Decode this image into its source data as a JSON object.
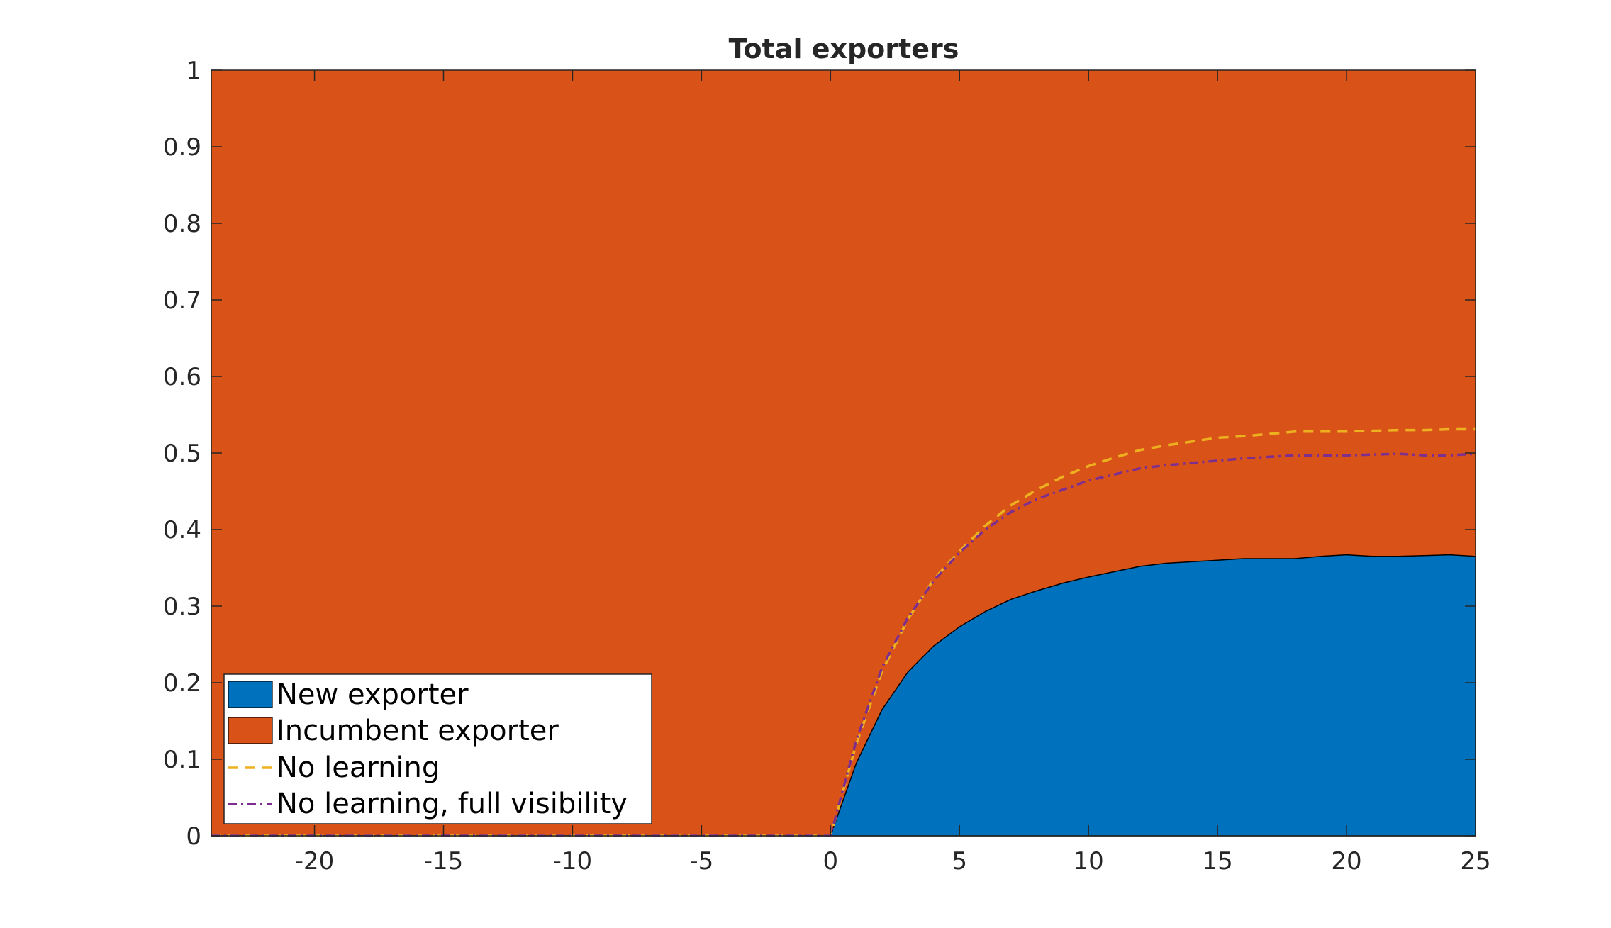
{
  "chart_data": {
    "type": "area",
    "title": "Total exporters",
    "xlabel": "",
    "ylabel": "",
    "xlim": [
      -24,
      25
    ],
    "ylim": [
      0,
      1
    ],
    "x_ticks": [
      -20,
      -15,
      -10,
      -5,
      0,
      5,
      10,
      15,
      20,
      25
    ],
    "y_ticks": [
      0,
      0.1,
      0.2,
      0.3,
      0.4,
      0.5,
      0.6,
      0.7,
      0.8,
      0.9,
      1
    ],
    "grid": false,
    "legend_position": "bottom-left",
    "x": [
      -24,
      0,
      1,
      2,
      3,
      4,
      5,
      6,
      7,
      8,
      9,
      10,
      11,
      12,
      13,
      14,
      15,
      16,
      17,
      18,
      19,
      20,
      21,
      22,
      23,
      24,
      25
    ],
    "series": [
      {
        "name": "New exporter",
        "kind": "area",
        "color": "#0072BD",
        "values": [
          0,
          0,
          0.095,
          0.165,
          0.214,
          0.248,
          0.273,
          0.293,
          0.309,
          0.32,
          0.33,
          0.338,
          0.345,
          0.352,
          0.356,
          0.358,
          0.36,
          0.362,
          0.362,
          0.362,
          0.365,
          0.367,
          0.365,
          0.365,
          0.366,
          0.367,
          0.365
        ]
      },
      {
        "name": "Incumbent exporter",
        "kind": "area",
        "color": "#D95319",
        "values": [
          1,
          1,
          0.905,
          0.835,
          0.786,
          0.752,
          0.727,
          0.707,
          0.691,
          0.68,
          0.67,
          0.662,
          0.655,
          0.648,
          0.644,
          0.642,
          0.64,
          0.638,
          0.638,
          0.638,
          0.635,
          0.633,
          0.635,
          0.635,
          0.634,
          0.633,
          0.635
        ]
      },
      {
        "name": "No learning",
        "kind": "dashed-line",
        "color": "#EDB120",
        "values": [
          0,
          0,
          0.12,
          0.215,
          0.283,
          0.335,
          0.372,
          0.405,
          0.432,
          0.452,
          0.469,
          0.483,
          0.494,
          0.504,
          0.51,
          0.515,
          0.52,
          0.522,
          0.525,
          0.528,
          0.528,
          0.528,
          0.529,
          0.53,
          0.53,
          0.531,
          0.531
        ]
      },
      {
        "name": "No learning, full visibility",
        "kind": "dashdot-line",
        "color": "#7E2F8E",
        "values": [
          0,
          0,
          0.125,
          0.22,
          0.285,
          0.333,
          0.37,
          0.4,
          0.423,
          0.44,
          0.452,
          0.464,
          0.472,
          0.48,
          0.484,
          0.487,
          0.49,
          0.493,
          0.495,
          0.497,
          0.497,
          0.497,
          0.498,
          0.499,
          0.497,
          0.497,
          0.499
        ]
      }
    ]
  }
}
